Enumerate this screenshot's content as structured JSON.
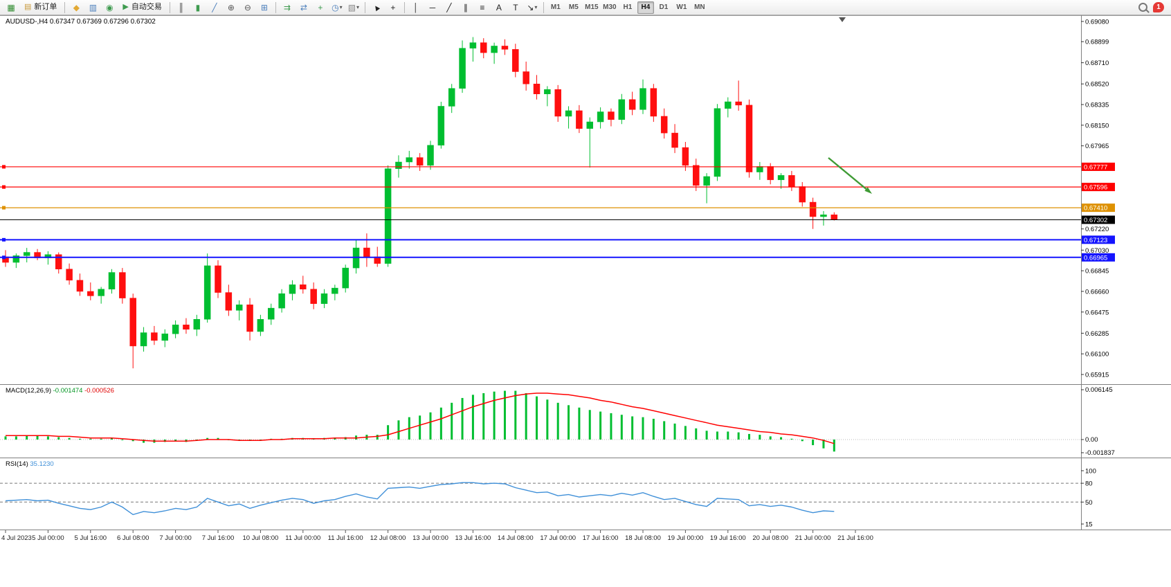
{
  "toolbar": {
    "notification_count": "1",
    "active_timeframe": "H4",
    "items": [
      {
        "t": "icon",
        "name": "new-chart-icon",
        "glyph": "▦",
        "color": "#2E8B2E"
      },
      {
        "t": "text-btn",
        "name": "new-order-button",
        "icon_glyph": "▤",
        "icon_color": "#C99A3C",
        "label": "新订单"
      },
      {
        "t": "sep"
      },
      {
        "t": "icon",
        "name": "layout-profiles-icon",
        "glyph": "◆",
        "color": "#E2A934"
      },
      {
        "t": "icon",
        "name": "market-watch-icon",
        "glyph": "▥",
        "color": "#4A7EBB"
      },
      {
        "t": "icon",
        "name": "navigator-icon",
        "glyph": "◉",
        "color": "#3E9B4F"
      },
      {
        "t": "text-btn",
        "name": "auto-trading-button",
        "icon_glyph": "▶",
        "icon_color": "#3E9B4F",
        "label": "自动交易"
      },
      {
        "t": "sep"
      },
      {
        "t": "icon",
        "name": "bars-mode-icon",
        "glyph": "║",
        "color": "#444444"
      },
      {
        "t": "icon",
        "name": "candles-mode-icon",
        "glyph": "▮",
        "color": "#3E9B4F"
      },
      {
        "t": "icon",
        "name": "line-mode-icon",
        "glyph": "╱",
        "color": "#4A7EBB"
      },
      {
        "t": "icon",
        "name": "zoom-in-icon",
        "glyph": "⊕",
        "color": "#555555"
      },
      {
        "t": "icon",
        "name": "zoom-out-icon",
        "glyph": "⊖",
        "color": "#555555"
      },
      {
        "t": "icon",
        "name": "tile-windows-icon",
        "glyph": "⊞",
        "color": "#4A7EBB"
      },
      {
        "t": "sep"
      },
      {
        "t": "icon",
        "name": "auto-scroll-icon",
        "glyph": "⇉",
        "color": "#3E9B4F"
      },
      {
        "t": "icon",
        "name": "chart-shift-icon",
        "glyph": "⇄",
        "color": "#4A7EBB"
      },
      {
        "t": "icon",
        "name": "indicators-icon",
        "glyph": "+",
        "color": "#3E9B4F"
      },
      {
        "t": "icon",
        "name": "periods-icon",
        "glyph": "◷",
        "color": "#4A7EBB",
        "caret": true
      },
      {
        "t": "icon",
        "name": "templates-icon",
        "glyph": "▧",
        "color": "#888888",
        "caret": true
      },
      {
        "t": "sep"
      },
      {
        "t": "icon",
        "name": "cursor-icon",
        "glyph": "▲",
        "color": "#222222",
        "rot": true
      },
      {
        "t": "icon",
        "name": "crosshair-icon",
        "glyph": "+",
        "color": "#222222"
      },
      {
        "t": "sep"
      },
      {
        "t": "icon",
        "name": "vertical-line-icon",
        "glyph": "│",
        "color": "#222222"
      },
      {
        "t": "icon",
        "name": "horizontal-line-icon",
        "glyph": "─",
        "color": "#222222"
      },
      {
        "t": "icon",
        "name": "trendline-icon",
        "glyph": "╱",
        "color": "#222222"
      },
      {
        "t": "icon",
        "name": "equidistant-channel-icon",
        "glyph": "∥",
        "color": "#222222"
      },
      {
        "t": "icon",
        "name": "fibonacci-icon",
        "glyph": "≡",
        "color": "#222222"
      },
      {
        "t": "icon",
        "name": "text-icon",
        "glyph": "A",
        "color": "#222222"
      },
      {
        "t": "icon",
        "name": "text-label-icon",
        "glyph": "T",
        "color": "#222222"
      },
      {
        "t": "icon",
        "name": "arrows-icon",
        "glyph": "↘",
        "color": "#222222",
        "caret": true
      },
      {
        "t": "sep"
      },
      {
        "t": "tf",
        "name": "timeframe-m1",
        "label": "M1"
      },
      {
        "t": "tf",
        "name": "timeframe-m5",
        "label": "M5"
      },
      {
        "t": "tf",
        "name": "timeframe-m15",
        "label": "M15"
      },
      {
        "t": "tf",
        "name": "timeframe-m30",
        "label": "M30"
      },
      {
        "t": "tf",
        "name": "timeframe-h1",
        "label": "H1"
      },
      {
        "t": "tf",
        "name": "timeframe-h4",
        "label": "H4"
      },
      {
        "t": "tf",
        "name": "timeframe-d1",
        "label": "D1"
      },
      {
        "t": "tf",
        "name": "timeframe-w1",
        "label": "W1"
      },
      {
        "t": "tf",
        "name": "timeframe-mn",
        "label": "MN"
      }
    ]
  },
  "chart": {
    "symbol": "AUDUSD-",
    "period": "H4",
    "title": "AUDUSD-,H4 0.67347 0.67369 0.67296 0.67302",
    "ohlc": {
      "open": "0.67347",
      "high": "0.67369",
      "low": "0.67296",
      "close": "0.67302"
    },
    "y_ticks": [
      "0.69080",
      "0.68899",
      "0.68710",
      "0.68520",
      "0.68335",
      "0.68150",
      "0.67965",
      "0.67220",
      "0.67030",
      "0.66845",
      "0.66660",
      "0.66475",
      "0.66285",
      "0.66100",
      "0.65915"
    ],
    "levels": [
      {
        "price": "0.67777",
        "color": "#FF0000",
        "width": 1.2,
        "handle": true
      },
      {
        "price": "0.67596",
        "color": "#FF0000",
        "width": 1.2,
        "handle": true
      },
      {
        "price": "0.67410",
        "color": "#DE9100",
        "width": 1.2,
        "handle": true
      },
      {
        "price": "0.67302",
        "color": "#000000",
        "width": 1,
        "handle": false
      },
      {
        "price": "0.67123",
        "color": "#1414FF",
        "width": 2,
        "handle": true
      },
      {
        "price": "0.66965",
        "color": "#1414FF",
        "width": 2,
        "handle": true
      }
    ],
    "time_labels": [
      "4 Jul 2023",
      "5 Jul 00:00",
      "5 Jul 16:00",
      "6 Jul 08:00",
      "7 Jul 00:00",
      "7 Jul 16:00",
      "10 Jul 08:00",
      "11 Jul 00:00",
      "11 Jul 16:00",
      "12 Jul 08:00",
      "13 Jul 00:00",
      "13 Jul 16:00",
      "14 Jul 08:00",
      "17 Jul 00:00",
      "17 Jul 16:00",
      "18 Jul 08:00",
      "19 Jul 00:00",
      "19 Jul 16:00",
      "20 Jul 08:00",
      "21 Jul 00:00",
      "21 Jul 16:00"
    ]
  },
  "indicators": {
    "macd": {
      "label": "MACD(12,26,9)",
      "value_main": "-0.001474",
      "value_signal": "-0.000526",
      "axis_labels": [
        "0.006145",
        "0.00",
        "-0.001837"
      ]
    },
    "rsi": {
      "label": "RSI(14)",
      "value": "35.1230",
      "axis_labels": [
        "100",
        "80",
        "50",
        "15"
      ],
      "level_lines": [
        80,
        50
      ]
    }
  },
  "chart_data": {
    "type": "candlestick",
    "symbol": "AUDUSD-",
    "timeframe": "H4",
    "price_range": [
      0.65915,
      0.6908
    ],
    "candles": [
      [
        0.6697,
        0.6703,
        0.6688,
        0.6692
      ],
      [
        0.6692,
        0.67,
        0.6687,
        0.6698
      ],
      [
        0.6698,
        0.6705,
        0.6692,
        0.6701
      ],
      [
        0.6701,
        0.6704,
        0.6694,
        0.6696
      ],
      [
        0.6696,
        0.6702,
        0.669,
        0.6699
      ],
      [
        0.6699,
        0.6701,
        0.6682,
        0.6686
      ],
      [
        0.6686,
        0.6691,
        0.6672,
        0.6676
      ],
      [
        0.6676,
        0.6682,
        0.6662,
        0.6666
      ],
      [
        0.6666,
        0.6674,
        0.6658,
        0.6662
      ],
      [
        0.6662,
        0.667,
        0.6655,
        0.6668
      ],
      [
        0.6668,
        0.6686,
        0.6664,
        0.6683
      ],
      [
        0.6683,
        0.6687,
        0.6655,
        0.666
      ],
      [
        0.666,
        0.6664,
        0.6597,
        0.6617
      ],
      [
        0.6617,
        0.6634,
        0.6612,
        0.6629
      ],
      [
        0.6629,
        0.6635,
        0.6618,
        0.6622
      ],
      [
        0.6622,
        0.6632,
        0.6616,
        0.6628
      ],
      [
        0.6628,
        0.664,
        0.6624,
        0.6636
      ],
      [
        0.6636,
        0.6642,
        0.6628,
        0.6632
      ],
      [
        0.6632,
        0.6645,
        0.6626,
        0.6641
      ],
      [
        0.6641,
        0.67,
        0.6638,
        0.6689
      ],
      [
        0.6689,
        0.6694,
        0.666,
        0.6665
      ],
      [
        0.6665,
        0.6672,
        0.6644,
        0.6649
      ],
      [
        0.6649,
        0.6658,
        0.664,
        0.6654
      ],
      [
        0.6654,
        0.666,
        0.6622,
        0.663
      ],
      [
        0.663,
        0.6645,
        0.6626,
        0.6641
      ],
      [
        0.6641,
        0.6655,
        0.6636,
        0.6651
      ],
      [
        0.6651,
        0.6668,
        0.6647,
        0.6664
      ],
      [
        0.6664,
        0.6676,
        0.6658,
        0.6672
      ],
      [
        0.6672,
        0.668,
        0.6664,
        0.6668
      ],
      [
        0.6668,
        0.6674,
        0.665,
        0.6655
      ],
      [
        0.6655,
        0.6668,
        0.6651,
        0.6664
      ],
      [
        0.6664,
        0.6672,
        0.6658,
        0.6669
      ],
      [
        0.6669,
        0.669,
        0.6665,
        0.6687
      ],
      [
        0.6687,
        0.6712,
        0.6682,
        0.6705
      ],
      [
        0.6705,
        0.6718,
        0.6688,
        0.6697
      ],
      [
        0.6697,
        0.6706,
        0.6688,
        0.6691
      ],
      [
        0.6691,
        0.6779,
        0.6688,
        0.6776
      ],
      [
        0.6776,
        0.6788,
        0.6768,
        0.6782
      ],
      [
        0.6782,
        0.6792,
        0.6776,
        0.6786
      ],
      [
        0.6786,
        0.679,
        0.6774,
        0.6779
      ],
      [
        0.6779,
        0.6801,
        0.6775,
        0.6797
      ],
      [
        0.6797,
        0.6836,
        0.6794,
        0.6832
      ],
      [
        0.6832,
        0.6852,
        0.6826,
        0.6848
      ],
      [
        0.6848,
        0.6891,
        0.6844,
        0.6884
      ],
      [
        0.6884,
        0.6894,
        0.6872,
        0.6889
      ],
      [
        0.6889,
        0.6893,
        0.6875,
        0.688
      ],
      [
        0.688,
        0.6889,
        0.687,
        0.6886
      ],
      [
        0.6886,
        0.6892,
        0.6878,
        0.6883
      ],
      [
        0.6883,
        0.6888,
        0.6858,
        0.6863
      ],
      [
        0.6863,
        0.6872,
        0.6846,
        0.6852
      ],
      [
        0.6852,
        0.686,
        0.6838,
        0.6843
      ],
      [
        0.6843,
        0.685,
        0.6832,
        0.6847
      ],
      [
        0.6847,
        0.6851,
        0.6818,
        0.6823
      ],
      [
        0.6823,
        0.6832,
        0.6812,
        0.6828
      ],
      [
        0.6828,
        0.6833,
        0.6808,
        0.6812
      ],
      [
        0.6812,
        0.6822,
        0.6777,
        0.6818
      ],
      [
        0.6818,
        0.6831,
        0.6812,
        0.6827
      ],
      [
        0.6827,
        0.683,
        0.6814,
        0.682
      ],
      [
        0.682,
        0.6843,
        0.6816,
        0.6838
      ],
      [
        0.6838,
        0.6845,
        0.6824,
        0.6829
      ],
      [
        0.6829,
        0.6856,
        0.6825,
        0.6848
      ],
      [
        0.6848,
        0.6852,
        0.6818,
        0.6823
      ],
      [
        0.6823,
        0.683,
        0.6803,
        0.6808
      ],
      [
        0.6808,
        0.6816,
        0.679,
        0.6795
      ],
      [
        0.6795,
        0.68,
        0.6774,
        0.6779
      ],
      [
        0.6779,
        0.6785,
        0.6756,
        0.6761
      ],
      [
        0.6761,
        0.6772,
        0.6745,
        0.6769
      ],
      [
        0.6769,
        0.6834,
        0.6765,
        0.683
      ],
      [
        0.683,
        0.684,
        0.6822,
        0.6836
      ],
      [
        0.6836,
        0.6855,
        0.6828,
        0.6833
      ],
      [
        0.6833,
        0.6838,
        0.6768,
        0.6773
      ],
      [
        0.6773,
        0.6782,
        0.6766,
        0.6778
      ],
      [
        0.6778,
        0.6781,
        0.6762,
        0.6766
      ],
      [
        0.6766,
        0.6772,
        0.6758,
        0.677
      ],
      [
        0.677,
        0.6774,
        0.6756,
        0.676
      ],
      [
        0.676,
        0.6764,
        0.6742,
        0.6746
      ],
      [
        0.6746,
        0.675,
        0.6722,
        0.6733
      ],
      [
        0.6733,
        0.6738,
        0.6725,
        0.67347
      ],
      [
        0.67347,
        0.67369,
        0.67296,
        0.67302
      ]
    ],
    "macd_histogram": [
      0.0004,
      0.0004,
      0.0005,
      0.0005,
      0.0004,
      0.0003,
      0.0002,
      0.0001,
      0.0001,
      0.0001,
      0.0002,
      0.0,
      -0.0002,
      -0.0004,
      -0.0004,
      -0.0003,
      -0.0002,
      -0.0003,
      -0.0001,
      0.0002,
      0.0002,
      0.0,
      0.0,
      -0.0001,
      0.0,
      0.0001,
      0.0001,
      0.0002,
      0.0002,
      0.0001,
      0.0002,
      0.0002,
      0.0003,
      0.0005,
      0.0006,
      0.0006,
      0.0018,
      0.0024,
      0.0028,
      0.003,
      0.0034,
      0.004,
      0.0046,
      0.0052,
      0.0056,
      0.0058,
      0.006,
      0.0061,
      0.0061,
      0.0058,
      0.0054,
      0.005,
      0.0046,
      0.0043,
      0.004,
      0.0037,
      0.0035,
      0.0033,
      0.0031,
      0.0029,
      0.0028,
      0.0026,
      0.0023,
      0.002,
      0.0017,
      0.0014,
      0.0011,
      0.001,
      0.001,
      0.0009,
      0.0007,
      0.0006,
      0.0004,
      0.0003,
      0.0001,
      -0.0002,
      -0.0007,
      -0.0011,
      -0.0015
    ],
    "macd_signal": [
      0.0005,
      0.0005,
      0.0005,
      0.0005,
      0.0005,
      0.0004,
      0.0004,
      0.0003,
      0.0002,
      0.0002,
      0.0002,
      0.0001,
      0.0,
      -0.0001,
      -0.0002,
      -0.0002,
      -0.0002,
      -0.0002,
      -0.0001,
      0.0,
      0.0,
      0.0,
      -0.0001,
      -0.0001,
      -0.0001,
      0.0,
      0.0,
      0.0001,
      0.0001,
      0.0001,
      0.0001,
      0.0002,
      0.0002,
      0.0002,
      0.0003,
      0.0004,
      0.0006,
      0.001,
      0.0014,
      0.0018,
      0.0022,
      0.0026,
      0.0031,
      0.0036,
      0.0041,
      0.0045,
      0.0049,
      0.0052,
      0.0055,
      0.0057,
      0.0058,
      0.0058,
      0.0057,
      0.0056,
      0.0054,
      0.0052,
      0.0049,
      0.0047,
      0.0044,
      0.0041,
      0.0039,
      0.0036,
      0.0033,
      0.003,
      0.0027,
      0.0024,
      0.0021,
      0.0018,
      0.0016,
      0.0014,
      0.0012,
      0.001,
      0.0009,
      0.0007,
      0.0006,
      0.0004,
      0.0002,
      -0.0001,
      -0.0005
    ],
    "rsi_values": [
      52,
      53,
      54,
      52,
      53,
      48,
      44,
      40,
      38,
      42,
      50,
      42,
      30,
      35,
      33,
      36,
      40,
      38,
      42,
      56,
      50,
      44,
      47,
      40,
      45,
      49,
      53,
      56,
      54,
      48,
      52,
      54,
      59,
      63,
      58,
      55,
      72,
      73,
      74,
      72,
      75,
      78,
      79,
      81,
      81,
      79,
      80,
      79,
      73,
      69,
      65,
      66,
      60,
      62,
      58,
      60,
      62,
      60,
      64,
      61,
      65,
      59,
      54,
      56,
      51,
      46,
      43,
      56,
      55,
      54,
      44,
      46,
      43,
      45,
      42,
      37,
      33,
      36,
      35.12
    ]
  },
  "annotations": {
    "arrow": {
      "direction": "down-right",
      "color": "#3F9B35"
    }
  },
  "colors": {
    "up": "#00BE30",
    "down": "#FF0F0F",
    "macd_hist": "#00BE30",
    "macd_signal": "#FF0000",
    "rsi_line": "#3E8FD8",
    "axis_text": "#000000",
    "time_text": "#1E1E1E",
    "pane_border": "#7F7F7F"
  }
}
